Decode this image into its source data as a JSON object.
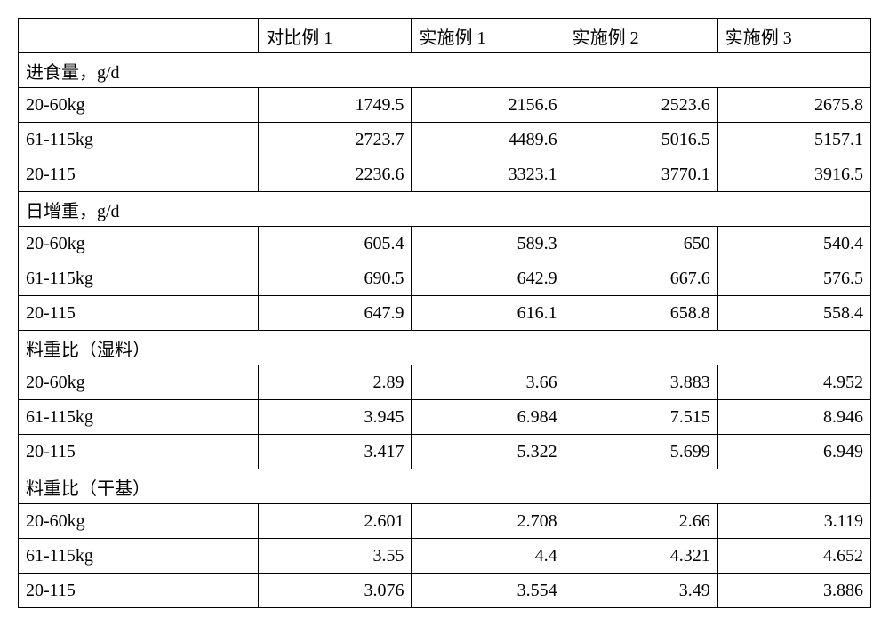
{
  "headers": {
    "blank": "",
    "col1": "对比例 1",
    "col2": "实施例 1",
    "col3": "实施例 2",
    "col4": "实施例 3"
  },
  "sections": [
    {
      "title": "进食量，g/d",
      "rows": [
        {
          "label": "20-60kg",
          "v1": "1749.5",
          "v2": "2156.6",
          "v3": "2523.6",
          "v4": "2675.8"
        },
        {
          "label": "61-115kg",
          "v1": "2723.7",
          "v2": "4489.6",
          "v3": "5016.5",
          "v4": "5157.1"
        },
        {
          "label": "20-115",
          "v1": "2236.6",
          "v2": "3323.1",
          "v3": "3770.1",
          "v4": "3916.5"
        }
      ]
    },
    {
      "title": "日增重，g/d",
      "rows": [
        {
          "label": "20-60kg",
          "v1": "605.4",
          "v2": "589.3",
          "v3": "650",
          "v4": "540.4"
        },
        {
          "label": "61-115kg",
          "v1": "690.5",
          "v2": "642.9",
          "v3": "667.6",
          "v4": "576.5"
        },
        {
          "label": "20-115",
          "v1": "647.9",
          "v2": "616.1",
          "v3": "658.8",
          "v4": "558.4"
        }
      ]
    },
    {
      "title": "料重比（湿料）",
      "rows": [
        {
          "label": "20-60kg",
          "v1": "2.89",
          "v2": "3.66",
          "v3": "3.883",
          "v4": "4.952"
        },
        {
          "label": "61-115kg",
          "v1": "3.945",
          "v2": "6.984",
          "v3": "7.515",
          "v4": "8.946"
        },
        {
          "label": "20-115",
          "v1": "3.417",
          "v2": "5.322",
          "v3": "5.699",
          "v4": "6.949"
        }
      ]
    },
    {
      "title": "料重比（干基）",
      "rows": [
        {
          "label": "20-60kg",
          "v1": "2.601",
          "v2": "2.708",
          "v3": "2.66",
          "v4": "3.119"
        },
        {
          "label": "61-115kg",
          "v1": "3.55",
          "v2": "4.4",
          "v3": "4.321",
          "v4": "4.652"
        },
        {
          "label": "20-115",
          "v1": "3.076",
          "v2": "3.554",
          "v3": "3.49",
          "v4": "3.886"
        }
      ]
    }
  ],
  "style": {
    "font_size": 20,
    "border_color": "#000000",
    "background_color": "#ffffff"
  }
}
